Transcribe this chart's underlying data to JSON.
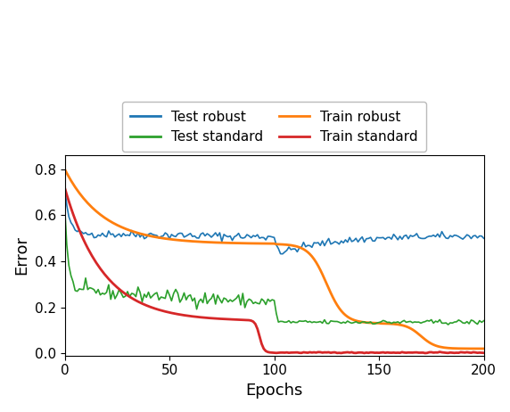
{
  "title": "",
  "xlabel": "Epochs",
  "ylabel": "Error",
  "xlim": [
    0,
    200
  ],
  "ylim": [
    -0.01,
    0.86
  ],
  "colors": {
    "test_robust": "#1f77b4",
    "train_robust": "#ff7f0e",
    "test_standard": "#2ca02c",
    "train_standard": "#d62728"
  },
  "seed": 42,
  "n_epochs": 200
}
